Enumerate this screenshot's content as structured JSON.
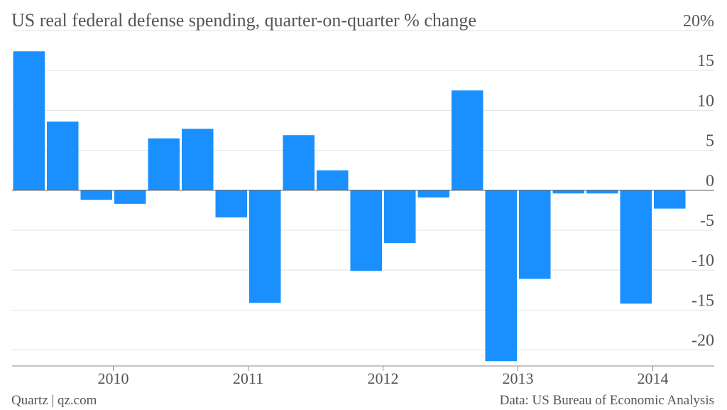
{
  "chart_data": {
    "type": "bar",
    "title": "US real federal defense spending, quarter-on-quarter % change",
    "source": "Data: US Bureau of Economic Analysis",
    "credit": "Quartz | qz.com",
    "categories": [
      null,
      null,
      null,
      null,
      null,
      null,
      null,
      null,
      null,
      null,
      null,
      null,
      null,
      null,
      null,
      null,
      null,
      null,
      null,
      null
    ],
    "values": [
      17.4,
      8.6,
      -1.2,
      -1.7,
      6.5,
      7.7,
      -3.4,
      -14.1,
      6.9,
      2.5,
      -10.1,
      -6.6,
      -0.9,
      12.5,
      -21.4,
      -11.1,
      -0.4,
      -0.4,
      -14.2,
      -2.3
    ],
    "color": "#1a90ff",
    "xticks": [
      {
        "value": 3,
        "label": "2010"
      },
      {
        "value": 7,
        "label": "2011"
      },
      {
        "value": 11,
        "label": "2012"
      },
      {
        "value": 15,
        "label": "2013"
      },
      {
        "value": 19,
        "label": "2014"
      }
    ],
    "ylim": [
      -22,
      20
    ],
    "yticks": [
      {
        "value": 20,
        "label": "20%"
      },
      15,
      10,
      5,
      0,
      -5,
      -10,
      -15,
      -20
    ],
    "grid": true
  }
}
